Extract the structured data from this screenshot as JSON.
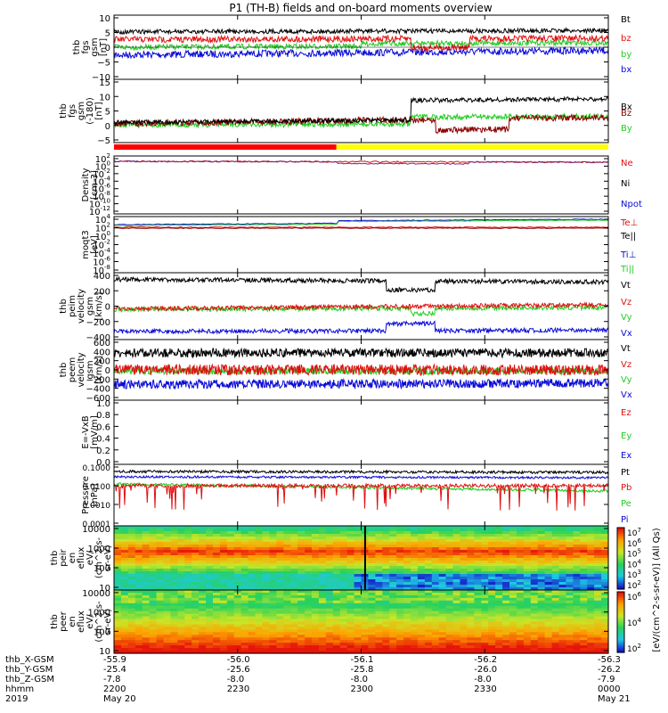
{
  "title": "P1 (TH-B) fields and on-board moments overview",
  "colors": {
    "black": "#000000",
    "red": "#e01010",
    "green": "#22cc22",
    "blue": "#0a0ad8",
    "darkred": "#8b0000",
    "purple": "#6a2a8a"
  },
  "mode_bar": {
    "segments": [
      {
        "start": "2200",
        "end": "2249",
        "color": "#ff0000"
      },
      {
        "start": "2249",
        "end": "0000",
        "color": "#ffff00"
      }
    ]
  },
  "chart_data": [
    {
      "type": "line",
      "panel": "fgs",
      "ylabel_lines": [
        "thb",
        "fgs",
        "gsm",
        "[nT]"
      ],
      "ylim": [
        -10,
        10
      ],
      "yticks": [
        10,
        5,
        0,
        -5,
        -10
      ],
      "tick_labels": [
        "10",
        "5",
        "0",
        "−5",
        "−10"
      ],
      "series": [
        {
          "name": "Bt",
          "color": "#000000",
          "level": 5
        },
        {
          "name": "bz",
          "color": "#e01010",
          "level": 2.5
        },
        {
          "name": "by",
          "color": "#22cc22",
          "level": 0
        },
        {
          "name": "bx",
          "color": "#0a0ad8",
          "level": -2
        }
      ]
    },
    {
      "type": "line",
      "panel": "fgs_gsm",
      "ylabel_lines": [
        "thb",
        "fgs",
        "gsm",
        "(-180)",
        "[nT]"
      ],
      "ylim": [
        -5,
        15
      ],
      "yticks": [
        15,
        10,
        5,
        0,
        -5
      ],
      "tick_labels": [
        "15",
        "10",
        "5",
        "0",
        "−5"
      ],
      "series": [
        {
          "name": "Bx",
          "color": "#000000",
          "level": 2
        },
        {
          "name": "Bz",
          "color": "#8b0000",
          "level": 1.5
        },
        {
          "name": "By",
          "color": "#22cc22",
          "level": 0.5
        }
      ]
    },
    {
      "type": "line",
      "panel": "density",
      "scale": "log",
      "ylabel_lines": [
        "Density",
        "[cm-3]"
      ],
      "tick_labels": [
        "10^2",
        "10^0",
        "10^-2",
        "10^-4",
        "10^-6",
        "10^-8",
        "10^-10",
        "10^-12"
      ],
      "series": [
        {
          "name": "Ne",
          "color": "#e01010"
        },
        {
          "name": "Ni",
          "color": "#000000"
        },
        {
          "name": "Npot",
          "color": "#0a0ad8"
        }
      ]
    },
    {
      "type": "line",
      "panel": "temperature",
      "scale": "log",
      "ylabel_lines": [
        "moqt3",
        "[eV]"
      ],
      "tick_labels": [
        "10^4",
        "10^2",
        "10^0",
        "10^-2",
        "10^-4",
        "10^-6",
        "10^-8"
      ],
      "series": [
        {
          "name": "Te⊥",
          "color": "#e01010"
        },
        {
          "name": "Te||",
          "color": "#000000"
        },
        {
          "name": "Ti⊥",
          "color": "#0a0ad8"
        },
        {
          "name": "Ti||",
          "color": "#22cc22"
        }
      ]
    },
    {
      "type": "line",
      "panel": "peim_velocity",
      "ylabel_lines": [
        "thb",
        "peim",
        "velocity",
        "gsm",
        "[km/s]"
      ],
      "ylim": [
        -400,
        400
      ],
      "yticks": [
        400,
        200,
        0,
        -200,
        -400
      ],
      "tick_labels": [
        "400",
        "200",
        "0",
        "−200",
        "−400"
      ],
      "series": [
        {
          "name": "Vt",
          "color": "#000000",
          "level": 340
        },
        {
          "name": "Vz",
          "color": "#e01010",
          "level": 0
        },
        {
          "name": "Vy",
          "color": "#22cc22",
          "level": -30
        },
        {
          "name": "Vx",
          "color": "#0a0ad8",
          "level": -330
        }
      ]
    },
    {
      "type": "line",
      "panel": "peem_velocity",
      "ylabel_lines": [
        "thb",
        "peem",
        "velocity",
        "gsm",
        "[km/s]"
      ],
      "ylim": [
        -600,
        600
      ],
      "yticks": [
        600,
        400,
        200,
        0,
        -200,
        -400,
        -600
      ],
      "tick_labels": [
        "600",
        "400",
        "200",
        "0",
        "−200",
        "−400",
        "−600"
      ],
      "series": [
        {
          "name": "Vt",
          "color": "#000000",
          "level": 350
        },
        {
          "name": "Vz",
          "color": "#e01010",
          "level": 0
        },
        {
          "name": "Vy",
          "color": "#22cc22",
          "level": -40
        },
        {
          "name": "Vx",
          "color": "#0a0ad8",
          "level": -320
        }
      ]
    },
    {
      "type": "line",
      "panel": "efield",
      "ylabel_lines": [
        "E=-VxB",
        "[mV/m]"
      ],
      "ylim": [
        0,
        1
      ],
      "yticks": [
        1.0,
        0.8,
        0.6,
        0.4,
        0.2,
        0.0
      ],
      "tick_labels": [
        "1.0",
        "0.8",
        "0.6",
        "0.4",
        "0.2",
        "0.0"
      ],
      "series": [
        {
          "name": "Ez",
          "color": "#e01010"
        },
        {
          "name": "Ey",
          "color": "#22cc22"
        },
        {
          "name": "Ex",
          "color": "#0a0ad8"
        }
      ]
    },
    {
      "type": "line",
      "panel": "pressure",
      "scale": "log",
      "ylabel_lines": [
        "Pressure",
        "[nPa]"
      ],
      "tick_labels": [
        "0.1000",
        "0.0100",
        "0.0010",
        "0.0001"
      ],
      "series": [
        {
          "name": "Pt",
          "color": "#000000",
          "level": 0.06
        },
        {
          "name": "Pb",
          "color": "#e01010",
          "level": 0.015
        },
        {
          "name": "Pe",
          "color": "#22cc22",
          "level": 0.01
        },
        {
          "name": "Pi",
          "color": "#0a0ad8",
          "level": 0.04
        }
      ]
    },
    {
      "type": "heatmap",
      "panel": "peir_eflux",
      "scale": "log",
      "ylabel_lines": [
        "thb",
        "peir",
        "en",
        "eflux",
        "eV/",
        "(cm^2-s-",
        "sr-eV)"
      ],
      "tick_labels": [
        "10000",
        "1000",
        "100",
        "10"
      ]
    },
    {
      "type": "heatmap",
      "panel": "peer_eflux",
      "scale": "log",
      "ylabel_lines": [
        "thb",
        "peer",
        "en",
        "eflux",
        "eV/",
        "(cm^2-s-",
        "sr-eV)"
      ],
      "tick_labels": [
        "10000",
        "1000",
        "100",
        "10"
      ]
    }
  ],
  "colorbar_ion": {
    "labels": [
      "10^7",
      "10^6",
      "10^5",
      "10^4",
      "10^3",
      "10^2"
    ]
  },
  "colorbar_elec": {
    "labels": [
      "10^6",
      "10^4",
      "10^2"
    ]
  },
  "colorbar_title": "[eV/(cm^2-s-sr-eV)] (All Qs)",
  "x_axis": {
    "row_labels": [
      "thb_X-GSM",
      "thb_Y-GSM",
      "thb_Z-GSM",
      "hhmm",
      "2019"
    ],
    "columns": [
      {
        "x": "-55.9",
        "y": "-25.4",
        "z": "-7.8",
        "hhmm": "2200",
        "date": "May 20"
      },
      {
        "x": "-56.0",
        "y": "-25.6",
        "z": "-8.0",
        "hhmm": "2230",
        "date": ""
      },
      {
        "x": "-56.1",
        "y": "-25.8",
        "z": "-8.0",
        "hhmm": "2300",
        "date": ""
      },
      {
        "x": "-56.2",
        "y": "-26.0",
        "z": "-8.0",
        "hhmm": "2330",
        "date": ""
      },
      {
        "x": "-56.3",
        "y": "-26.2",
        "z": "-7.9",
        "hhmm": "0000",
        "date": "May 21"
      }
    ]
  }
}
